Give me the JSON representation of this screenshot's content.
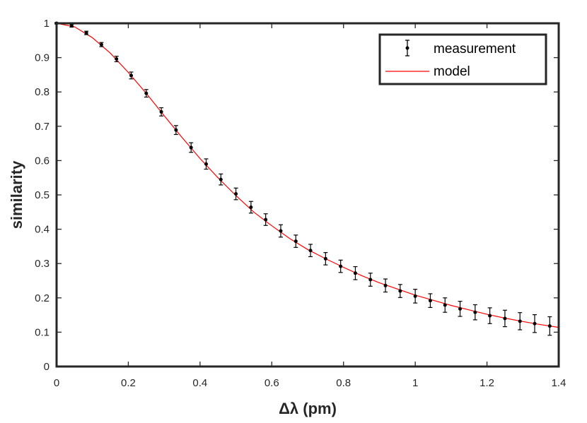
{
  "chart_data": {
    "type": "scatter",
    "title": "",
    "xlabel": "Δλ (pm)",
    "ylabel": "similarity",
    "xlim": [
      0,
      1.4
    ],
    "ylim": [
      0,
      1
    ],
    "grid": false,
    "legend_position": "top-right",
    "x_ticks": [
      "0",
      "0.2",
      "0.4",
      "0.6",
      "0.8",
      "1",
      "1.2",
      "1.4"
    ],
    "y_ticks": [
      "0",
      "0.1",
      "0.2",
      "0.3",
      "0.4",
      "0.5",
      "0.6",
      "0.7",
      "0.8",
      "0.9",
      "1"
    ],
    "series": [
      {
        "name": "measurement",
        "style": "points-with-errorbars",
        "color": "#000000",
        "x": [
          0,
          0.042,
          0.083,
          0.125,
          0.167,
          0.208,
          0.25,
          0.292,
          0.333,
          0.375,
          0.417,
          0.458,
          0.5,
          0.542,
          0.583,
          0.625,
          0.667,
          0.708,
          0.75,
          0.792,
          0.833,
          0.875,
          0.917,
          0.958,
          1.0,
          1.042,
          1.083,
          1.125,
          1.167,
          1.208,
          1.25,
          1.292,
          1.333,
          1.375
        ],
        "y": [
          1.0,
          0.993,
          0.972,
          0.938,
          0.896,
          0.848,
          0.796,
          0.742,
          0.689,
          0.638,
          0.59,
          0.545,
          0.503,
          0.464,
          0.428,
          0.395,
          0.365,
          0.338,
          0.314,
          0.292,
          0.272,
          0.253,
          0.236,
          0.22,
          0.205,
          0.192,
          0.179,
          0.168,
          0.158,
          0.148,
          0.14,
          0.132,
          0.125,
          0.118
        ],
        "error": [
          0.002,
          0.004,
          0.005,
          0.006,
          0.008,
          0.01,
          0.011,
          0.012,
          0.013,
          0.014,
          0.015,
          0.016,
          0.017,
          0.017,
          0.017,
          0.018,
          0.018,
          0.018,
          0.018,
          0.018,
          0.019,
          0.019,
          0.019,
          0.019,
          0.02,
          0.02,
          0.021,
          0.022,
          0.022,
          0.023,
          0.024,
          0.025,
          0.026,
          0.027
        ]
      },
      {
        "name": "model",
        "style": "line",
        "color": "#ff0000",
        "x": [
          0,
          0.05,
          0.1,
          0.15,
          0.2,
          0.25,
          0.3,
          0.35,
          0.4,
          0.45,
          0.5,
          0.55,
          0.6,
          0.65,
          0.7,
          0.75,
          0.8,
          0.85,
          0.9,
          0.95,
          1.0,
          1.05,
          1.1,
          1.15,
          1.2,
          1.25,
          1.3,
          1.35,
          1.4
        ],
        "y": [
          1.0,
          0.99,
          0.958,
          0.913,
          0.857,
          0.796,
          0.731,
          0.667,
          0.606,
          0.55,
          0.498,
          0.45,
          0.41,
          0.373,
          0.341,
          0.314,
          0.289,
          0.265,
          0.244,
          0.226,
          0.208,
          0.193,
          0.178,
          0.165,
          0.152,
          0.141,
          0.131,
          0.122,
          0.114
        ]
      }
    ]
  },
  "legend": {
    "measurement_label": "measurement",
    "model_label": "model"
  }
}
